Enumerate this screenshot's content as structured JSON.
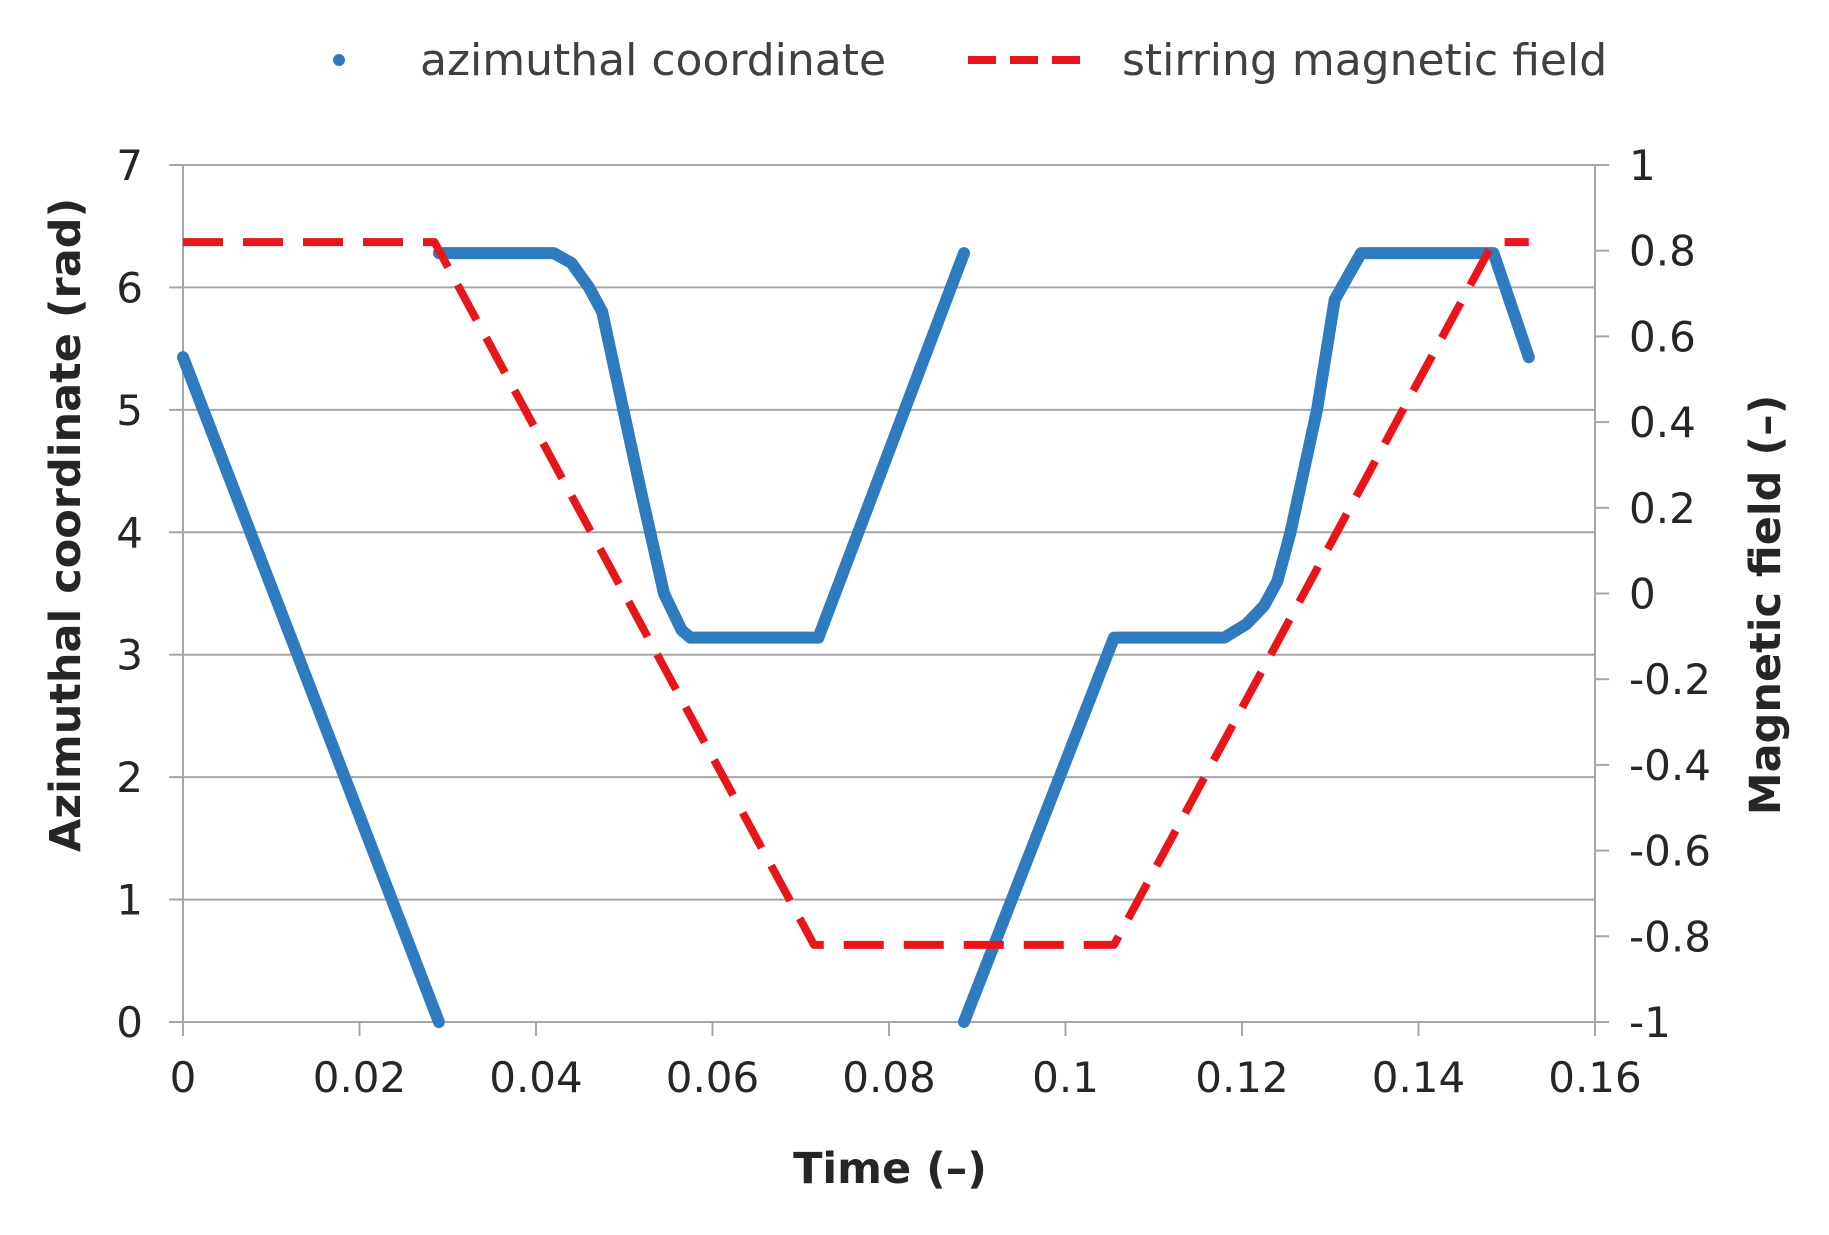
{
  "chart_data": {
    "type": "line",
    "title": "",
    "xlabel": "Time (–)",
    "ylabel_left": "Azimuthal coordinate (rad)",
    "ylabel_right": "Magnetic field (–)",
    "xlim": [
      0,
      0.16
    ],
    "ylim_left": [
      0,
      7
    ],
    "ylim_right": [
      -1,
      1
    ],
    "x_ticks": [
      "0",
      "0.02",
      "0.04",
      "0.06",
      "0.08",
      "0.1",
      "0.12",
      "0.14",
      "0.16"
    ],
    "y_left_ticks": [
      "0",
      "1",
      "2",
      "3",
      "4",
      "5",
      "6",
      "7"
    ],
    "y_right_ticks": [
      "-1",
      "-0.8",
      "-0.6",
      "-0.4",
      "-0.2",
      "0",
      "0.2",
      "0.4",
      "0.6",
      "0.8",
      "1"
    ],
    "grid": true,
    "legend_position": "top",
    "series": [
      {
        "name": "azimuthal coordinate",
        "axis": "left",
        "style": "dots",
        "color": "#2e7bbf",
        "segments": [
          {
            "x": [
              0,
              0.029
            ],
            "y": [
              5.43,
              0
            ]
          },
          {
            "x": [
              0.029,
              0.042,
              0.044,
              0.046,
              0.0475,
              0.049,
              0.052,
              0.0545,
              0.0565,
              0.0575,
              0.072,
              0.0885
            ],
            "y": [
              6.28,
              6.28,
              6.2,
              6.0,
              5.8,
              5.3,
              4.3,
              3.5,
              3.2,
              3.14,
              3.14,
              6.28
            ]
          },
          {
            "x": [
              0.0885,
              0.1055,
              0.118,
              0.1205,
              0.1225,
              0.124,
              0.1255,
              0.1285,
              0.1305,
              0.1335,
              0.1485,
              0.1525
            ],
            "y": [
              0,
              3.14,
              3.14,
              3.25,
              3.4,
              3.6,
              4.0,
              5.0,
              5.9,
              6.28,
              6.28,
              5.43
            ]
          }
        ]
      },
      {
        "name": "stirring magnetic field",
        "axis": "right",
        "style": "dashed",
        "color": "#e8161b",
        "segments": [
          {
            "x": [
              0,
              0.0285,
              0.0715,
              0.1055,
              0.1485,
              0.1525
            ],
            "y": [
              0.82,
              0.82,
              -0.82,
              -0.82,
              0.82,
              0.82
            ]
          }
        ]
      }
    ]
  }
}
